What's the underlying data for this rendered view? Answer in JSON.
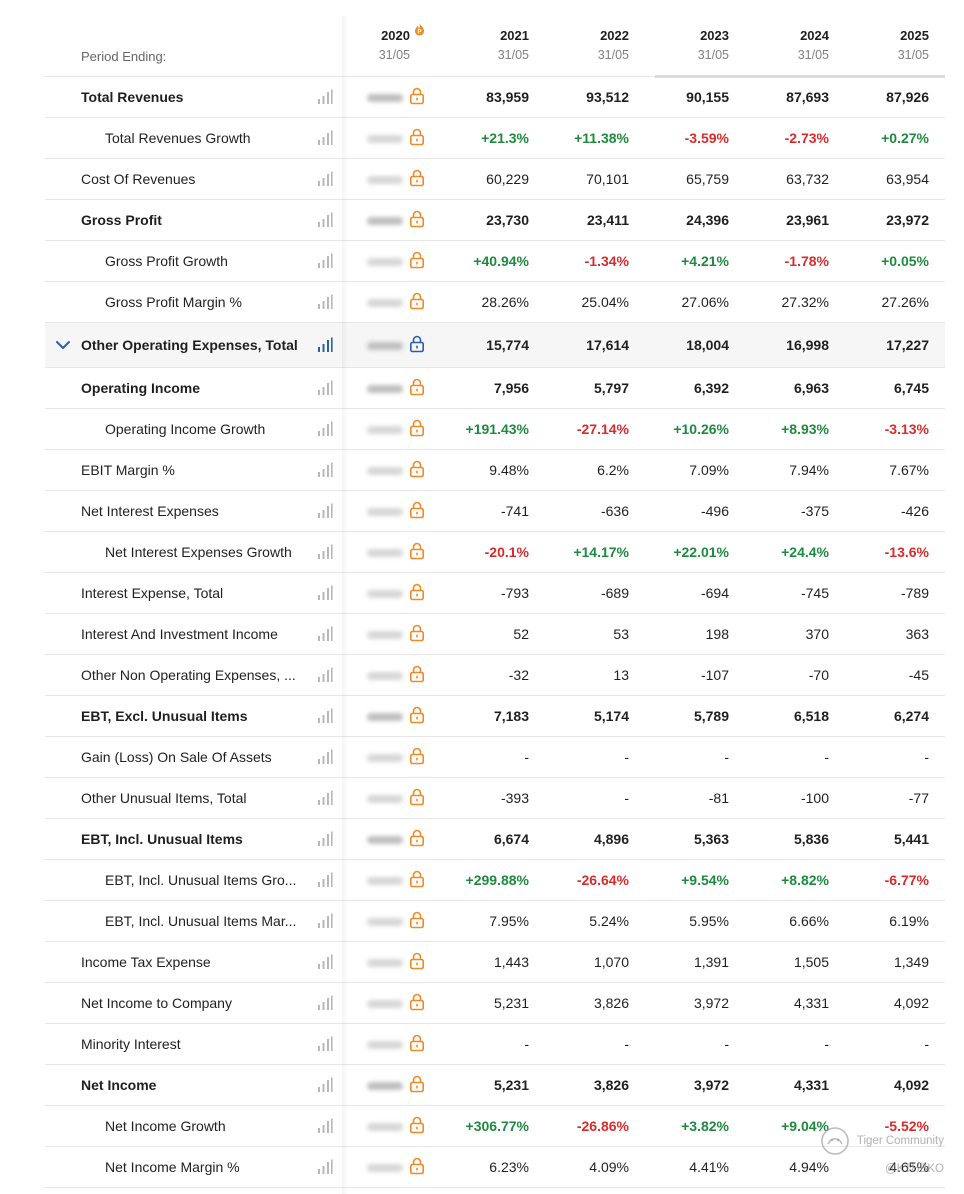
{
  "table": {
    "period_label": "Period Ending:",
    "columns": [
      {
        "year": "2020",
        "date": "31/05"
      },
      {
        "year": "2021",
        "date": "31/05"
      },
      {
        "year": "2022",
        "date": "31/05"
      },
      {
        "year": "2023",
        "date": "31/05"
      },
      {
        "year": "2024",
        "date": "31/05"
      },
      {
        "year": "2025",
        "date": "31/05"
      }
    ],
    "rows": [
      {
        "label": "Total Revenues",
        "style": "bold",
        "values": [
          "83,959",
          "93,512",
          "90,155",
          "87,693",
          "87,926"
        ]
      },
      {
        "label": "Total Revenues Growth",
        "style": "indent",
        "values": [
          "+21.3%",
          "+11.38%",
          "-3.59%",
          "-2.73%",
          "+0.27%"
        ]
      },
      {
        "label": "Cost Of Revenues",
        "style": "normal",
        "values": [
          "60,229",
          "70,101",
          "65,759",
          "63,732",
          "63,954"
        ]
      },
      {
        "label": "Gross Profit",
        "style": "bold",
        "values": [
          "23,730",
          "23,411",
          "24,396",
          "23,961",
          "23,972"
        ]
      },
      {
        "label": "Gross Profit Growth",
        "style": "indent",
        "values": [
          "+40.94%",
          "-1.34%",
          "+4.21%",
          "-1.78%",
          "+0.05%"
        ]
      },
      {
        "label": "Gross Profit Margin %",
        "style": "indent",
        "values": [
          "28.26%",
          "25.04%",
          "27.06%",
          "27.32%",
          "27.26%"
        ]
      },
      {
        "label": "Other Operating Expenses, Total",
        "style": "expanded",
        "values": [
          "15,774",
          "17,614",
          "18,004",
          "16,998",
          "17,227"
        ]
      },
      {
        "label": "Operating Income",
        "style": "bold",
        "values": [
          "7,956",
          "5,797",
          "6,392",
          "6,963",
          "6,745"
        ]
      },
      {
        "label": "Operating Income Growth",
        "style": "indent",
        "values": [
          "+191.43%",
          "-27.14%",
          "+10.26%",
          "+8.93%",
          "-3.13%"
        ]
      },
      {
        "label": "EBIT Margin %",
        "style": "normal",
        "values": [
          "9.48%",
          "6.2%",
          "7.09%",
          "7.94%",
          "7.67%"
        ]
      },
      {
        "label": "Net Interest Expenses",
        "style": "normal",
        "values": [
          "-741",
          "-636",
          "-496",
          "-375",
          "-426"
        ]
      },
      {
        "label": "Net Interest Expenses Growth",
        "style": "indent",
        "values": [
          "-20.1%",
          "+14.17%",
          "+22.01%",
          "+24.4%",
          "-13.6%"
        ]
      },
      {
        "label": "Interest Expense, Total",
        "style": "normal",
        "values": [
          "-793",
          "-689",
          "-694",
          "-745",
          "-789"
        ]
      },
      {
        "label": "Interest And Investment Income",
        "style": "normal",
        "values": [
          "52",
          "53",
          "198",
          "370",
          "363"
        ]
      },
      {
        "label": "Other Non Operating Expenses, ...",
        "style": "normal",
        "values": [
          "-32",
          "13",
          "-107",
          "-70",
          "-45"
        ]
      },
      {
        "label": "EBT, Excl. Unusual Items",
        "style": "bold",
        "values": [
          "7,183",
          "5,174",
          "5,789",
          "6,518",
          "6,274"
        ]
      },
      {
        "label": "Gain (Loss) On Sale Of Assets",
        "style": "normal",
        "values": [
          "-",
          "-",
          "-",
          "-",
          "-"
        ]
      },
      {
        "label": "Other Unusual Items, Total",
        "style": "normal",
        "values": [
          "-393",
          "-",
          "-81",
          "-100",
          "-77"
        ]
      },
      {
        "label": "EBT, Incl. Unusual Items",
        "style": "bold",
        "values": [
          "6,674",
          "4,896",
          "5,363",
          "5,836",
          "5,441"
        ]
      },
      {
        "label": "EBT, Incl. Unusual Items Gro...",
        "style": "indent",
        "values": [
          "+299.88%",
          "-26.64%",
          "+9.54%",
          "+8.82%",
          "-6.77%"
        ]
      },
      {
        "label": "EBT, Incl. Unusual Items Mar...",
        "style": "indent",
        "values": [
          "7.95%",
          "5.24%",
          "5.95%",
          "6.66%",
          "6.19%"
        ]
      },
      {
        "label": "Income Tax Expense",
        "style": "normal",
        "values": [
          "1,443",
          "1,070",
          "1,391",
          "1,505",
          "1,349"
        ]
      },
      {
        "label": "Net Income to Company",
        "style": "normal",
        "values": [
          "5,231",
          "3,826",
          "3,972",
          "4,331",
          "4,092"
        ]
      },
      {
        "label": "Minority Interest",
        "style": "normal",
        "values": [
          "-",
          "-",
          "-",
          "-",
          "-"
        ]
      },
      {
        "label": "Net Income",
        "style": "bold",
        "values": [
          "5,231",
          "3,826",
          "3,972",
          "4,331",
          "4,092"
        ]
      },
      {
        "label": "Net Income Growth",
        "style": "indent",
        "values": [
          "+306.77%",
          "-26.86%",
          "+3.82%",
          "+9.04%",
          "-5.52%"
        ]
      },
      {
        "label": "Net Income Margin %",
        "style": "indent",
        "values": [
          "6.23%",
          "4.09%",
          "4.41%",
          "4.94%",
          "4.65%"
        ]
      }
    ]
  },
  "icons": {
    "row_chart": "bar-chart-icon",
    "locked_2020": "lock-icon",
    "premium_header": "fire-icon",
    "expand": "chevron-down-icon"
  },
  "colors": {
    "positive": "#1e8a3e",
    "negative": "#d92b2b",
    "lock": "#f08a24",
    "accent": "#2b5fa8"
  },
  "watermark": {
    "brand": "Tiger Community",
    "handle": "@KTHBKO"
  }
}
